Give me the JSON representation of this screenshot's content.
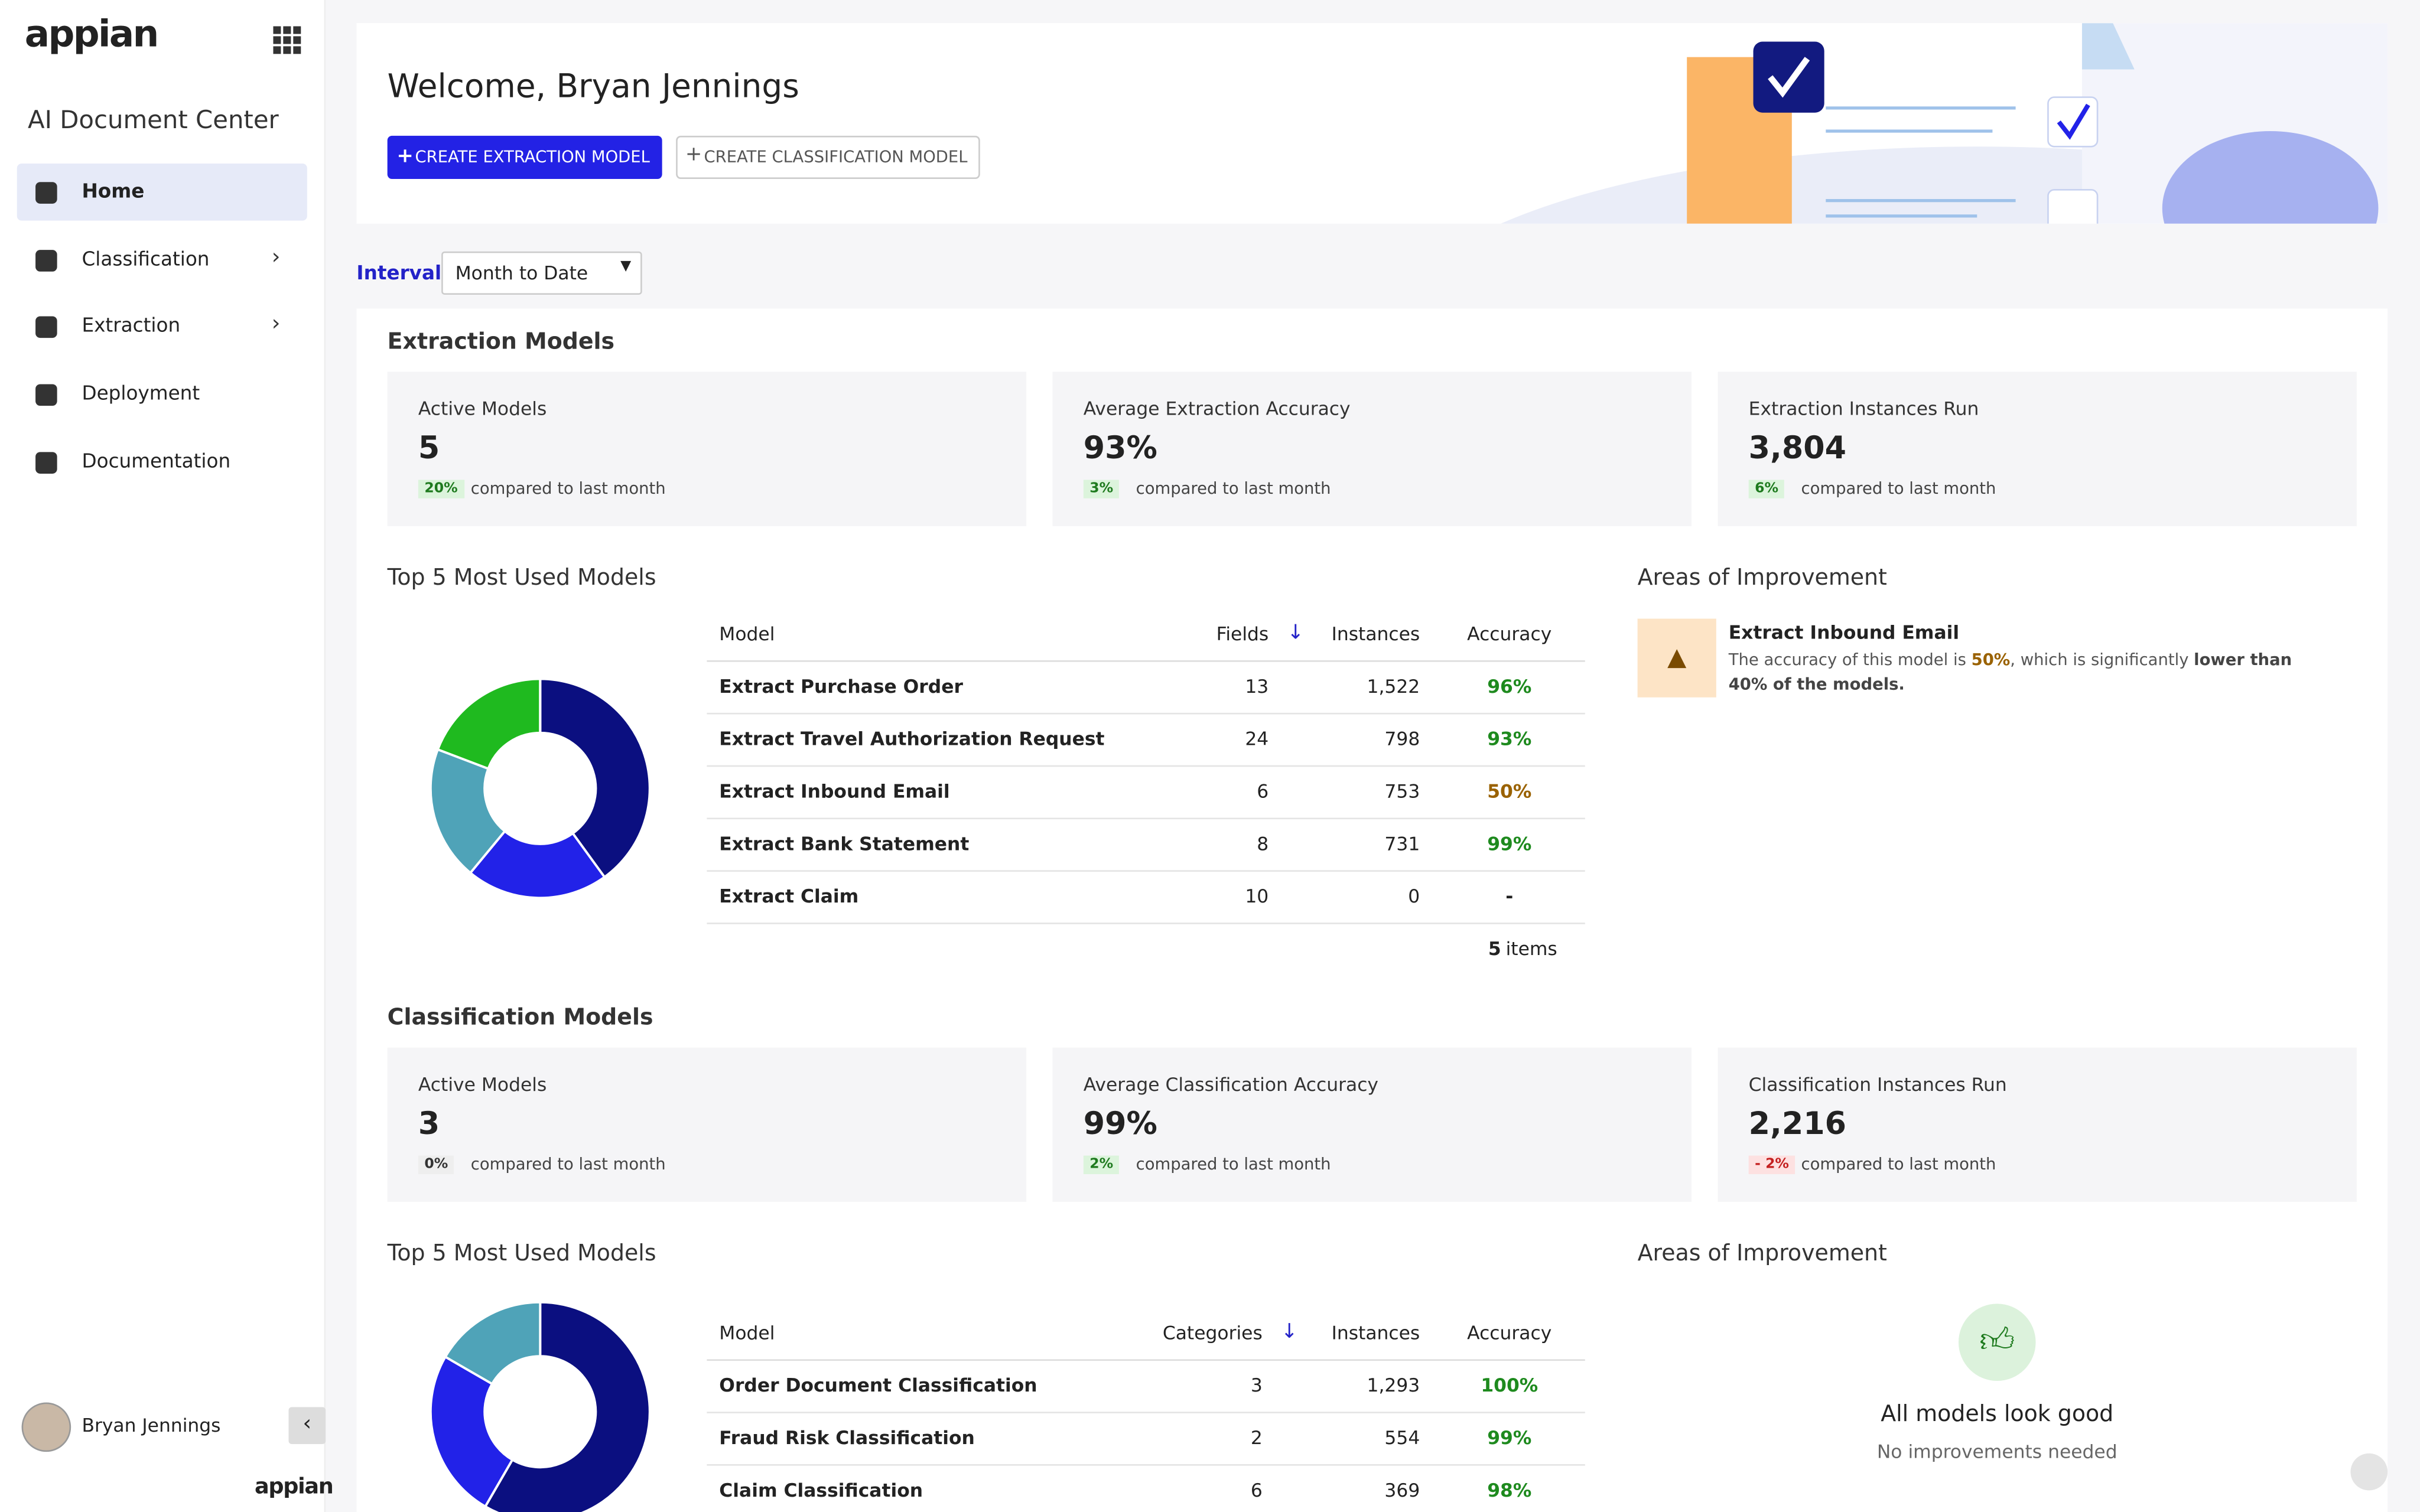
{
  "sidebar": {
    "brand": "appian",
    "app_title": "AI Document Center",
    "nav": [
      {
        "label": "Home",
        "active": true,
        "chevron": false
      },
      {
        "label": "Classification",
        "active": false,
        "chevron": true
      },
      {
        "label": "Extraction",
        "active": false,
        "chevron": true
      },
      {
        "label": "Deployment",
        "active": false,
        "chevron": false
      },
      {
        "label": "Documentation",
        "active": false,
        "chevron": false
      }
    ],
    "user": "Bryan Jennings",
    "footer_brand": "appian"
  },
  "header": {
    "welcome": "Welcome, Bryan Jennings",
    "buttons": [
      "CREATE EXTRACTION MODEL",
      "CREATE CLASSIFICATION MODEL"
    ]
  },
  "interval": {
    "label": "Interval",
    "value": "Month to Date"
  },
  "sections": [
    {
      "title": "Extraction Models",
      "stats": [
        {
          "label": "Active Models",
          "value": "5",
          "change": "20%",
          "trend": "up",
          "note": "compared to last month"
        },
        {
          "label": "Average Extraction Accuracy",
          "value": "93%",
          "change": "3%",
          "trend": "up",
          "note": "compared to last month"
        },
        {
          "label": "Extraction Instances Run",
          "value": "3,804",
          "change": "6%",
          "trend": "up",
          "note": "compared to last month"
        }
      ],
      "top": {
        "title": "Top 5 Most Used Models",
        "columns": [
          "Model",
          "Fields",
          "Instances",
          "Accuracy"
        ],
        "donut_colors": [
          "#0b0f80",
          "#2222e8",
          "#4fa3b8",
          "#1fba1f",
          "#999999"
        ],
        "rows": [
          {
            "model": "Extract Purchase Order",
            "count": "13",
            "instances": {
              "value": 1522,
              "label": "1,522"
            },
            "accuracy": "96%",
            "accuracy_color": "#1e8a1e"
          },
          {
            "model": "Extract Travel Authorization Request",
            "count": "24",
            "instances": {
              "value": 798,
              "label": "798"
            },
            "accuracy": "93%",
            "accuracy_color": "#1e8a1e"
          },
          {
            "model": "Extract Inbound Email",
            "count": "6",
            "instances": {
              "value": 753,
              "label": "753"
            },
            "accuracy": "50%",
            "accuracy_color": "#9a6200"
          },
          {
            "model": "Extract Bank Statement",
            "count": "8",
            "instances": {
              "value": 731,
              "label": "731"
            },
            "accuracy": "99%",
            "accuracy_color": "#1e8a1e"
          },
          {
            "model": "Extract Claim",
            "count": "10",
            "instances": {
              "value": 0,
              "label": "0"
            },
            "accuracy": "-",
            "accuracy_color": "#222222"
          }
        ],
        "count": "5",
        "count_suffix": "items"
      },
      "improvement": {
        "title": "Areas of Improvement",
        "kind": "warning",
        "item_title": "Extract Inbound Email",
        "parts": [
          {
            "text": "The accuracy of this model is ",
            "bold": false,
            "color": "#555555"
          },
          {
            "text": "50%",
            "bold": true,
            "color": "#9a6200"
          },
          {
            "text": ", which is significantly ",
            "bold": false,
            "color": "#555555"
          },
          {
            "text": "lower than 40% of the models.",
            "bold": true,
            "color": "#444444"
          }
        ]
      }
    },
    {
      "title": "Classification Models",
      "stats": [
        {
          "label": "Active Models",
          "value": "3",
          "change": "0%",
          "trend": "flat",
          "note": "compared to last month"
        },
        {
          "label": "Average Classification Accuracy",
          "value": "99%",
          "change": "2%",
          "trend": "up",
          "note": "compared to last month"
        },
        {
          "label": "Classification Instances Run",
          "value": "2,216",
          "change": "- 2%",
          "trend": "down",
          "note": "compared to last month"
        }
      ],
      "top": {
        "title": "Top 5 Most Used Models",
        "columns": [
          "Model",
          "Categories",
          "Instances",
          "Accuracy"
        ],
        "donut_colors": [
          "#0b0f80",
          "#2222e8",
          "#4fa3b8"
        ],
        "rows": [
          {
            "model": "Order Document Classification",
            "count": "3",
            "instances": {
              "value": 1293,
              "label": "1,293"
            },
            "accuracy": "100%",
            "accuracy_color": "#1e8a1e"
          },
          {
            "model": "Fraud Risk Classification",
            "count": "2",
            "instances": {
              "value": 554,
              "label": "554"
            },
            "accuracy": "99%",
            "accuracy_color": "#1e8a1e"
          },
          {
            "model": "Claim Classification",
            "count": "6",
            "instances": {
              "value": 369,
              "label": "369"
            },
            "accuracy": "98%",
            "accuracy_color": "#1e8a1e"
          }
        ]
      },
      "improvement": {
        "title": "Areas of Improvement",
        "kind": "good",
        "message": "All models look good",
        "sub": "No improvements needed"
      }
    }
  ]
}
